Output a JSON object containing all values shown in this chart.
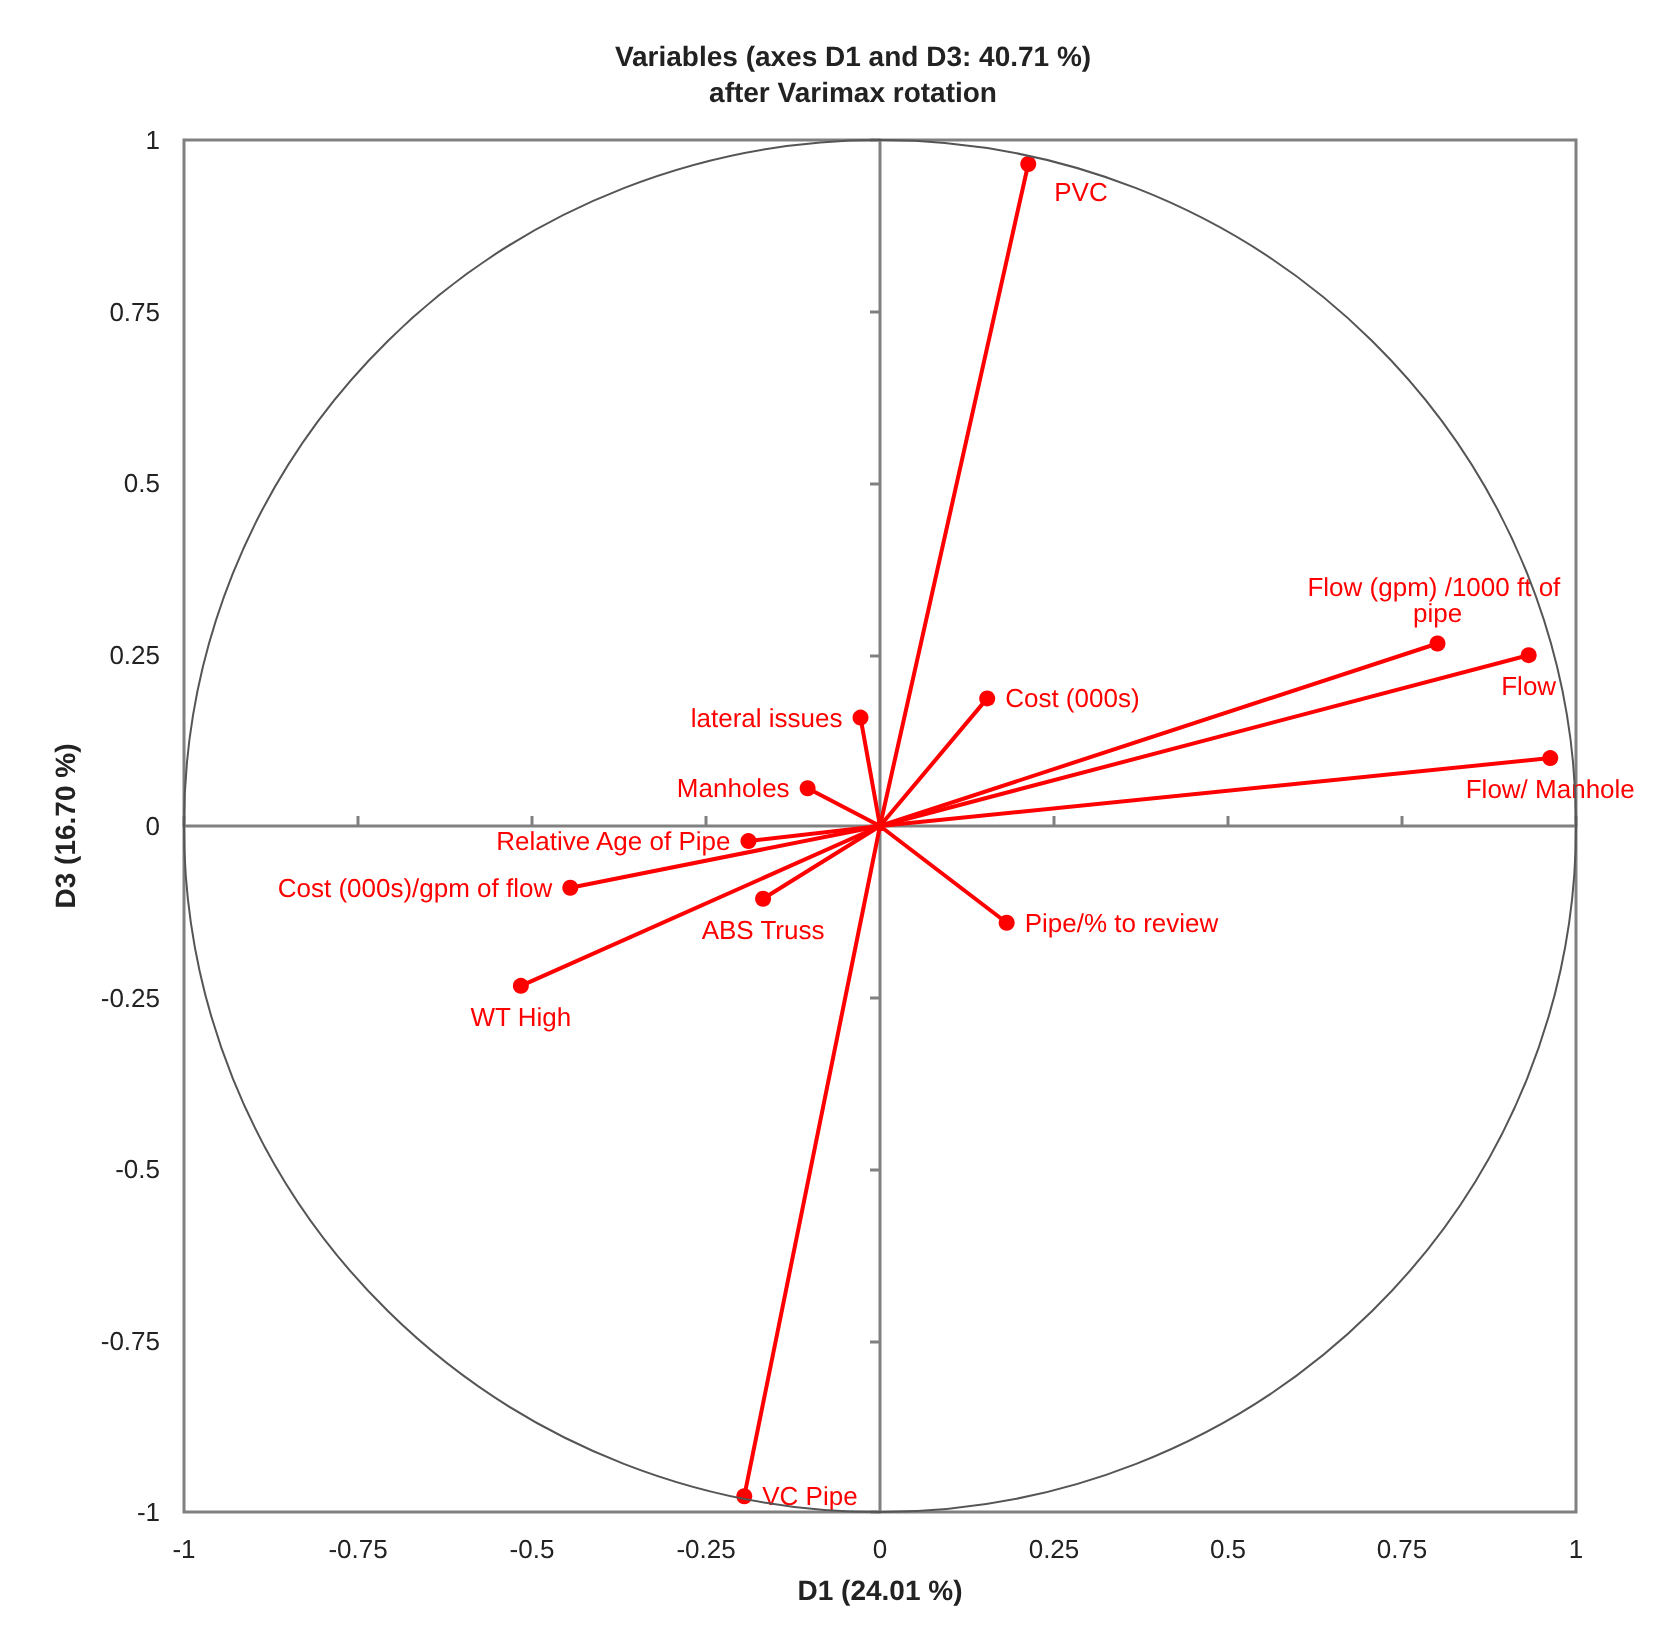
{
  "chart_data": {
    "type": "line",
    "title": "Variables (axes D1 and D3: 40.71 %)",
    "subtitle": "after Varimax rotation",
    "xlabel": "D1 (24.01 %)",
    "ylabel": "D3 (16.70 %)",
    "xlim": [
      -1,
      1
    ],
    "ylim": [
      -1,
      1
    ],
    "xticks": [
      -1,
      -0.75,
      -0.5,
      -0.25,
      0,
      0.25,
      0.5,
      0.75,
      1
    ],
    "yticks": [
      -1,
      -0.75,
      -0.5,
      -0.25,
      0,
      0.25,
      0.5,
      0.75,
      1
    ],
    "marker": "circle",
    "line_style": "solid",
    "series": [
      {
        "name": "PVC",
        "color": "#ff0000",
        "x": [
          0,
          0.213
        ],
        "values": [
          0,
          0.965
        ]
      },
      {
        "name": "Flow (gpm) /1000 ft of pipe",
        "color": "#ff0000",
        "x": [
          0,
          0.801
        ],
        "values": [
          0,
          0.266
        ]
      },
      {
        "name": "Flow",
        "color": "#ff0000",
        "x": [
          0,
          0.932
        ],
        "values": [
          0,
          0.249
        ]
      },
      {
        "name": "Flow/ Manhole",
        "color": "#ff0000",
        "x": [
          0,
          0.963
        ],
        "values": [
          0,
          0.099
        ]
      },
      {
        "name": "Cost (000s)",
        "color": "#ff0000",
        "x": [
          0,
          0.154
        ],
        "values": [
          0,
          0.186
        ]
      },
      {
        "name": "lateral issues",
        "color": "#ff0000",
        "x": [
          0,
          -0.028
        ],
        "values": [
          0,
          0.158
        ]
      },
      {
        "name": "Manholes",
        "color": "#ff0000",
        "x": [
          0,
          -0.104
        ],
        "values": [
          0,
          0.055
        ]
      },
      {
        "name": "Relative Age of Pipe",
        "color": "#ff0000",
        "x": [
          0,
          -0.189
        ],
        "values": [
          0,
          -0.022
        ]
      },
      {
        "name": "Cost (000s)/gpm of flow",
        "color": "#ff0000",
        "x": [
          0,
          -0.445
        ],
        "values": [
          0,
          -0.09
        ]
      },
      {
        "name": "ABS Truss",
        "color": "#ff0000",
        "x": [
          0,
          -0.168
        ],
        "values": [
          0,
          -0.106
        ]
      },
      {
        "name": "Pipe/% to review",
        "color": "#ff0000",
        "x": [
          0,
          0.182
        ],
        "values": [
          0,
          -0.141
        ]
      },
      {
        "name": "WT High",
        "color": "#ff0000",
        "x": [
          0,
          -0.516
        ],
        "values": [
          0,
          -0.233
        ]
      },
      {
        "name": "VC Pipe",
        "color": "#ff0000",
        "x": [
          0,
          -0.195
        ],
        "values": [
          0,
          -0.977
        ]
      }
    ]
  }
}
